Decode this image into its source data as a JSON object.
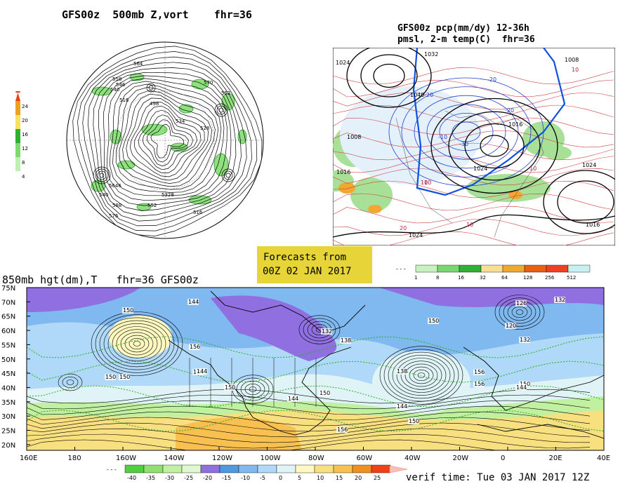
{
  "polar": {
    "title": "GFS00z  500mb Z,vort    fhr=36",
    "colorbar_ticks": [
      "24",
      "20",
      "16",
      "12",
      "8",
      "4"
    ],
    "contour_labels": [
      "564",
      "558",
      "546",
      "540",
      "516",
      "498",
      "534",
      "528",
      "570",
      "552",
      "5646",
      "540",
      "576",
      "588",
      "552",
      "5328",
      "516",
      "534",
      "576"
    ]
  },
  "precip": {
    "title_line1": "GFS00z pcp(mm/dy) 12-36h",
    "title_line2": "pmsl, 2-m temp(C)  fhr=36",
    "labels": [
      "1024",
      "1032",
      "1040",
      "1016",
      "1008",
      "1024",
      "-20",
      "-10",
      "-20",
      "-30",
      "-20",
      "10",
      "10",
      "10",
      "1024",
      "1016",
      "1008",
      "1016",
      "20",
      "1024",
      "10",
      "10"
    ],
    "colorbar_ticks": [
      "1",
      "8",
      "16",
      "32",
      "64",
      "128",
      "256",
      "512"
    ],
    "colorbar_colors": [
      "#c8f0c0",
      "#78d870",
      "#30b030",
      "#f8e090",
      "#f0a830",
      "#e86010",
      "#f04020",
      "#c8f0f0"
    ]
  },
  "banner": {
    "line1": "Forecasts from",
    "line2": "00Z 02 JAN 2017",
    "color": "#e6d438"
  },
  "main": {
    "title": "850mb hgt(dm),T   fhr=36 GFS00z",
    "lat_labels": [
      "75N",
      "70N",
      "65N",
      "60N",
      "55N",
      "50N",
      "45N",
      "40N",
      "35N",
      "30N",
      "25N",
      "20N"
    ],
    "lon_labels": [
      "160E",
      "180",
      "160W",
      "140W",
      "120W",
      "100W",
      "80W",
      "60W",
      "40W",
      "20W",
      "0",
      "20E",
      "40E"
    ],
    "contour_labels": [
      "144",
      "150",
      "150",
      "144",
      "156",
      "144",
      "150",
      "150",
      "144",
      "132",
      "138",
      "150",
      "138",
      "144",
      "150",
      "156",
      "156",
      "126",
      "132",
      "120",
      "132",
      "150",
      "144",
      "156",
      "150"
    ],
    "colorbar_ticks": [
      "-40",
      "-35",
      "-30",
      "-25",
      "-20",
      "-15",
      "-10",
      "-5",
      "0",
      "5",
      "10",
      "15",
      "20",
      "25"
    ],
    "colorbar_colors": [
      "#50d040",
      "#90e070",
      "#c0f0a0",
      "#e0f8d0",
      "#9070e0",
      "#5098e0",
      "#80b8f0",
      "#b0d8f8",
      "#e0f4f8",
      "#fff8c0",
      "#f8e080",
      "#f8c050",
      "#f09020",
      "#f04018"
    ],
    "verif": "verif time: Tue 03 JAN 2017 12Z"
  }
}
